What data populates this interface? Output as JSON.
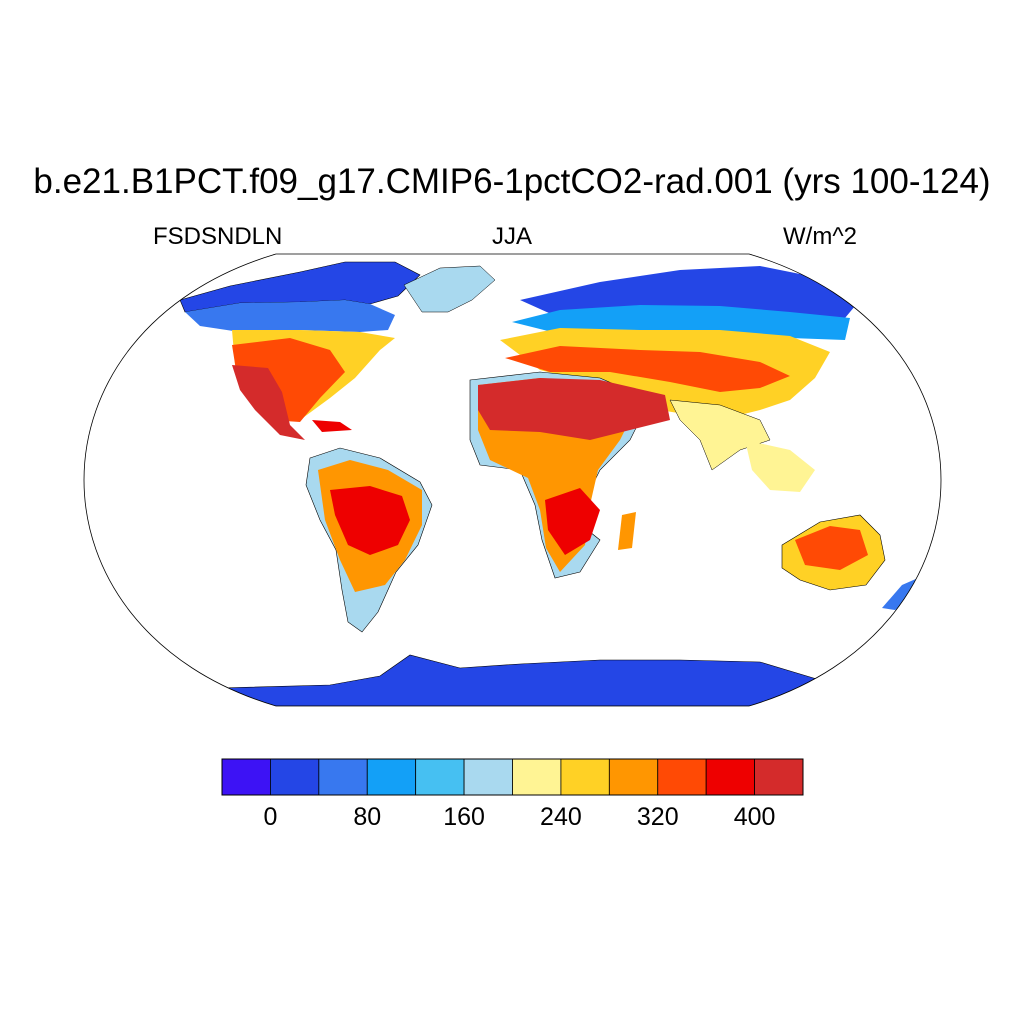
{
  "title": "b.e21.B1PCT.f09_g17.CMIP6-1pctCO2-rad.001 (yrs 100-124)",
  "subtitle_left": "FSDSNDLN",
  "subtitle_center": "JJA",
  "subtitle_right": "W/m^2",
  "colorbar": {
    "colors": [
      "#3d12f5",
      "#2446e6",
      "#3878ef",
      "#13a0f7",
      "#46c0f2",
      "#a9d9ef",
      "#fff494",
      "#ffd125",
      "#ff9601",
      "#ff4a05",
      "#ee0000",
      "#d42b2b"
    ],
    "tick_labels": [
      "0",
      "80",
      "160",
      "240",
      "320",
      "400"
    ]
  }
}
